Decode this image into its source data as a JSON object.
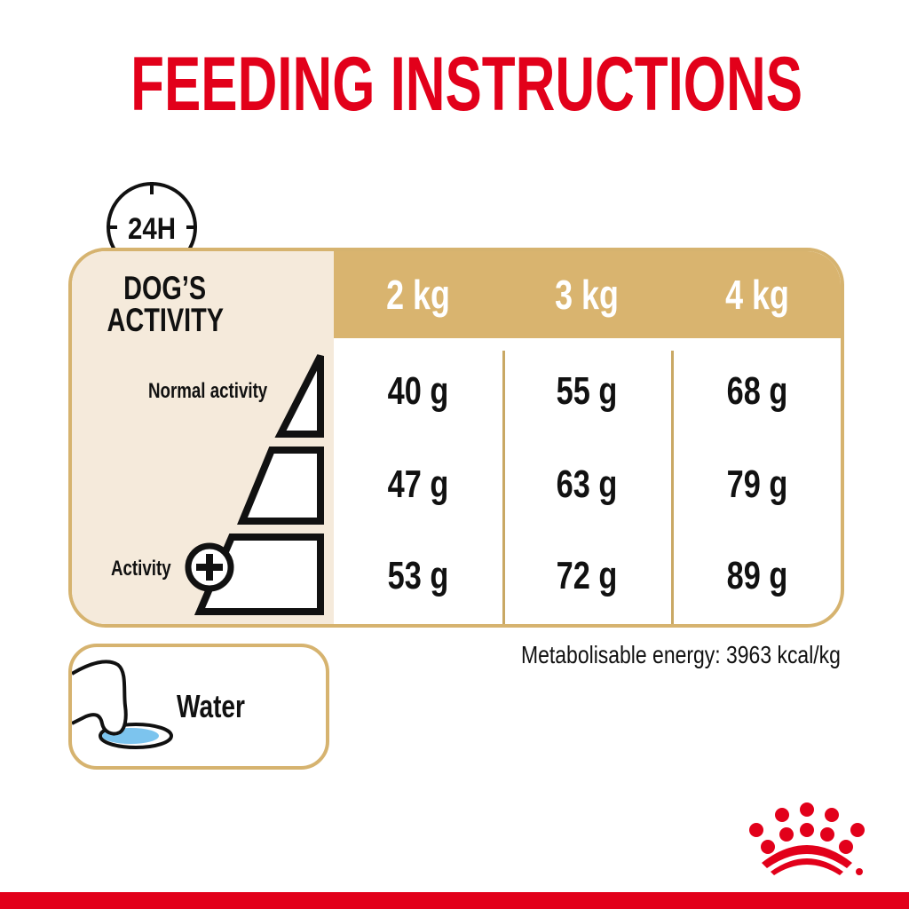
{
  "title": "FEEDING INSTRUCTIONS",
  "clock_label": "24H",
  "table": {
    "activity_header_line1": "DOG’S",
    "activity_header_line2": "ACTIVITY",
    "columns": [
      "2 kg",
      "3 kg",
      "4 kg"
    ],
    "activity_labels": {
      "top": "Normal activity",
      "bottom": "Activity"
    },
    "rows": [
      [
        "40 g",
        "55 g",
        "68 g"
      ],
      [
        "47 g",
        "63 g",
        "79 g"
      ],
      [
        "53 g",
        "72 g",
        "89 g"
      ]
    ]
  },
  "water_label": "Water",
  "energy_text": "Metabolisable energy: 3963 kcal/kg",
  "colors": {
    "brand_red": "#e2001a",
    "gold": "#d9b46f",
    "cream": "#f5eadb",
    "water_blue": "#7cc4ee"
  },
  "logo": "Royal Canin crown logo"
}
